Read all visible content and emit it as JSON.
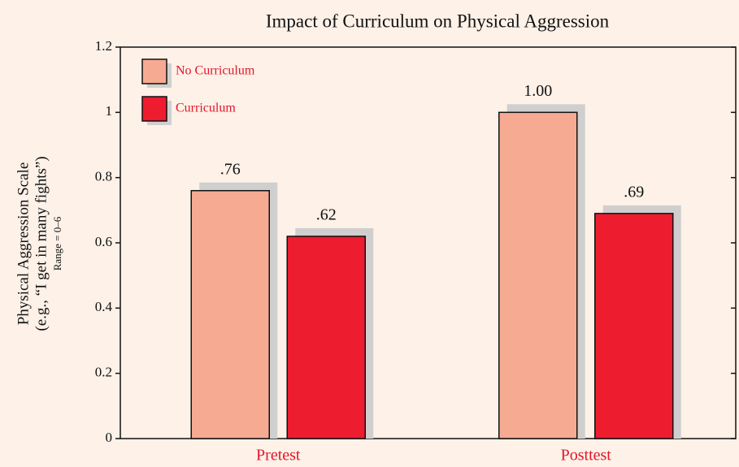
{
  "chart_data": {
    "type": "bar",
    "title": "Impact of Curriculum on Physical Aggression",
    "y_label": [
      "Physical Aggression Scale",
      "(e.g., “I get in many fights”)",
      "Range = 0–6"
    ],
    "categories": [
      "Pretest",
      "Posttest"
    ],
    "series": [
      {
        "name": "No Curriculum",
        "color": "#f7aa92",
        "values": [
          0.76,
          1.0
        ],
        "value_labels": [
          ".76",
          "1.00"
        ]
      },
      {
        "name": "Curriculum",
        "color": "#ee1c2f",
        "values": [
          0.62,
          0.69
        ],
        "value_labels": [
          ".62",
          ".69"
        ]
      }
    ],
    "ylim": [
      0,
      1.2
    ],
    "yticks": [
      0,
      0.2,
      0.4,
      0.6,
      0.8,
      1,
      1.2
    ],
    "legend": "upper-left"
  }
}
